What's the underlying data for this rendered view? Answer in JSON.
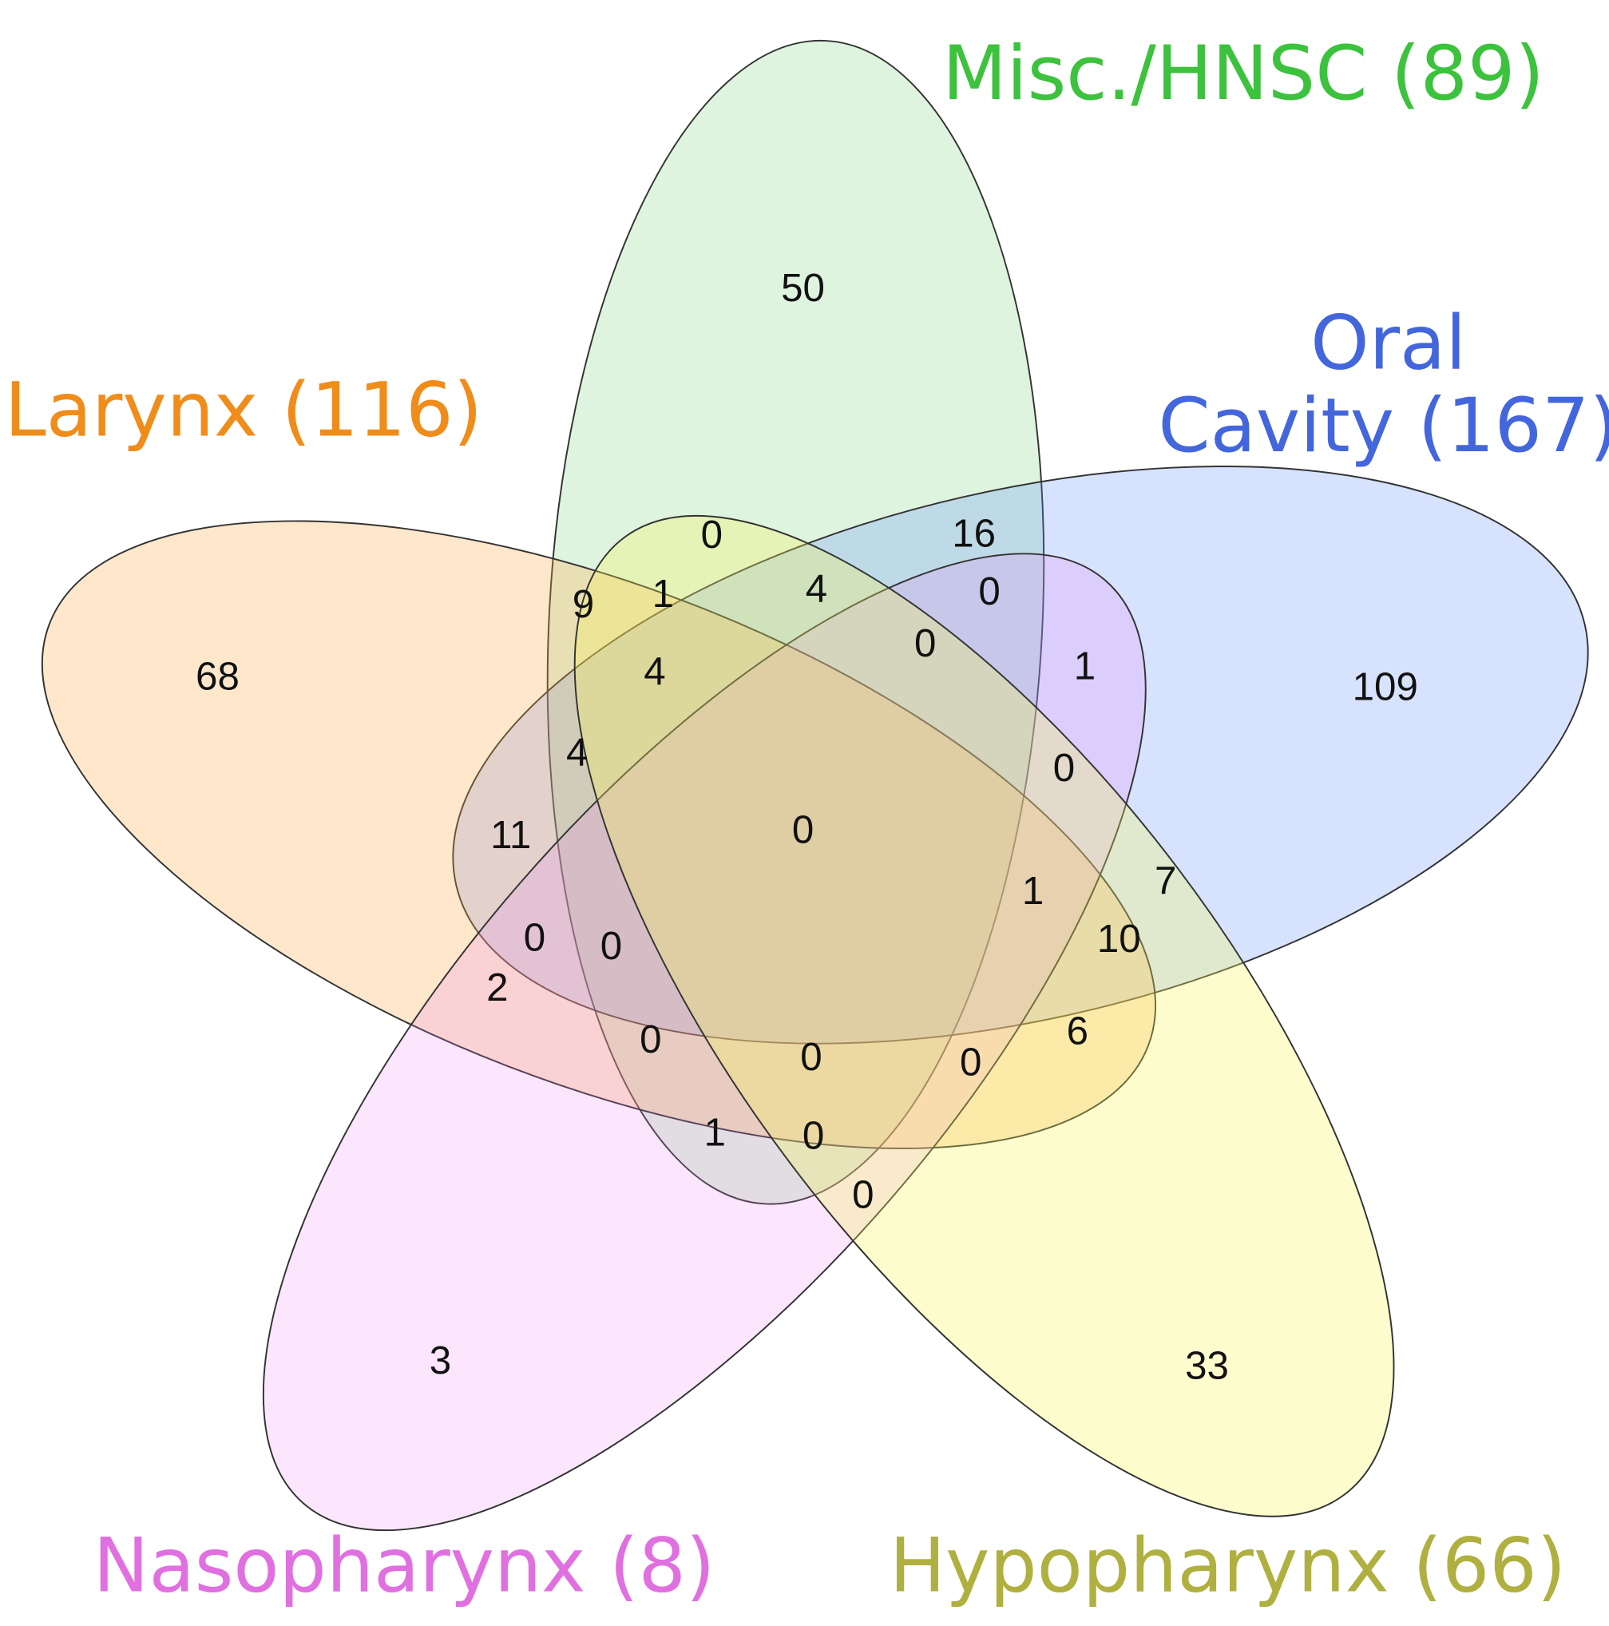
{
  "sets": [
    {
      "label_lines": [
        "Misc./HNSC (89)"
      ],
      "color": "#3cc23c",
      "fill": "rgba(110,205,110,0.22)"
    },
    {
      "label_lines": [
        "Oral",
        "Cavity (167)"
      ],
      "color": "#4466dd",
      "fill": "rgba(95,140,255,0.25)"
    },
    {
      "label_lines": [
        "Larynx (116)"
      ],
      "color": "#f08c1a",
      "fill": "rgba(255,170,70,0.28)"
    },
    {
      "label_lines": [
        "Nasopharynx (8)"
      ],
      "color": "#e070e0",
      "fill": "rgba(235,130,245,0.2)"
    },
    {
      "label_lines": [
        "Hypopharynx (66)"
      ],
      "color": "#b0b040",
      "fill": "rgba(245,245,90,0.3)"
    }
  ],
  "regions": [
    50,
    68,
    109,
    3,
    33,
    0,
    16,
    9,
    1,
    4,
    0,
    0,
    1,
    4,
    4,
    0,
    11,
    0,
    1,
    7,
    0,
    0,
    10,
    2,
    6,
    0,
    0,
    0,
    1,
    0,
    0
  ]
}
